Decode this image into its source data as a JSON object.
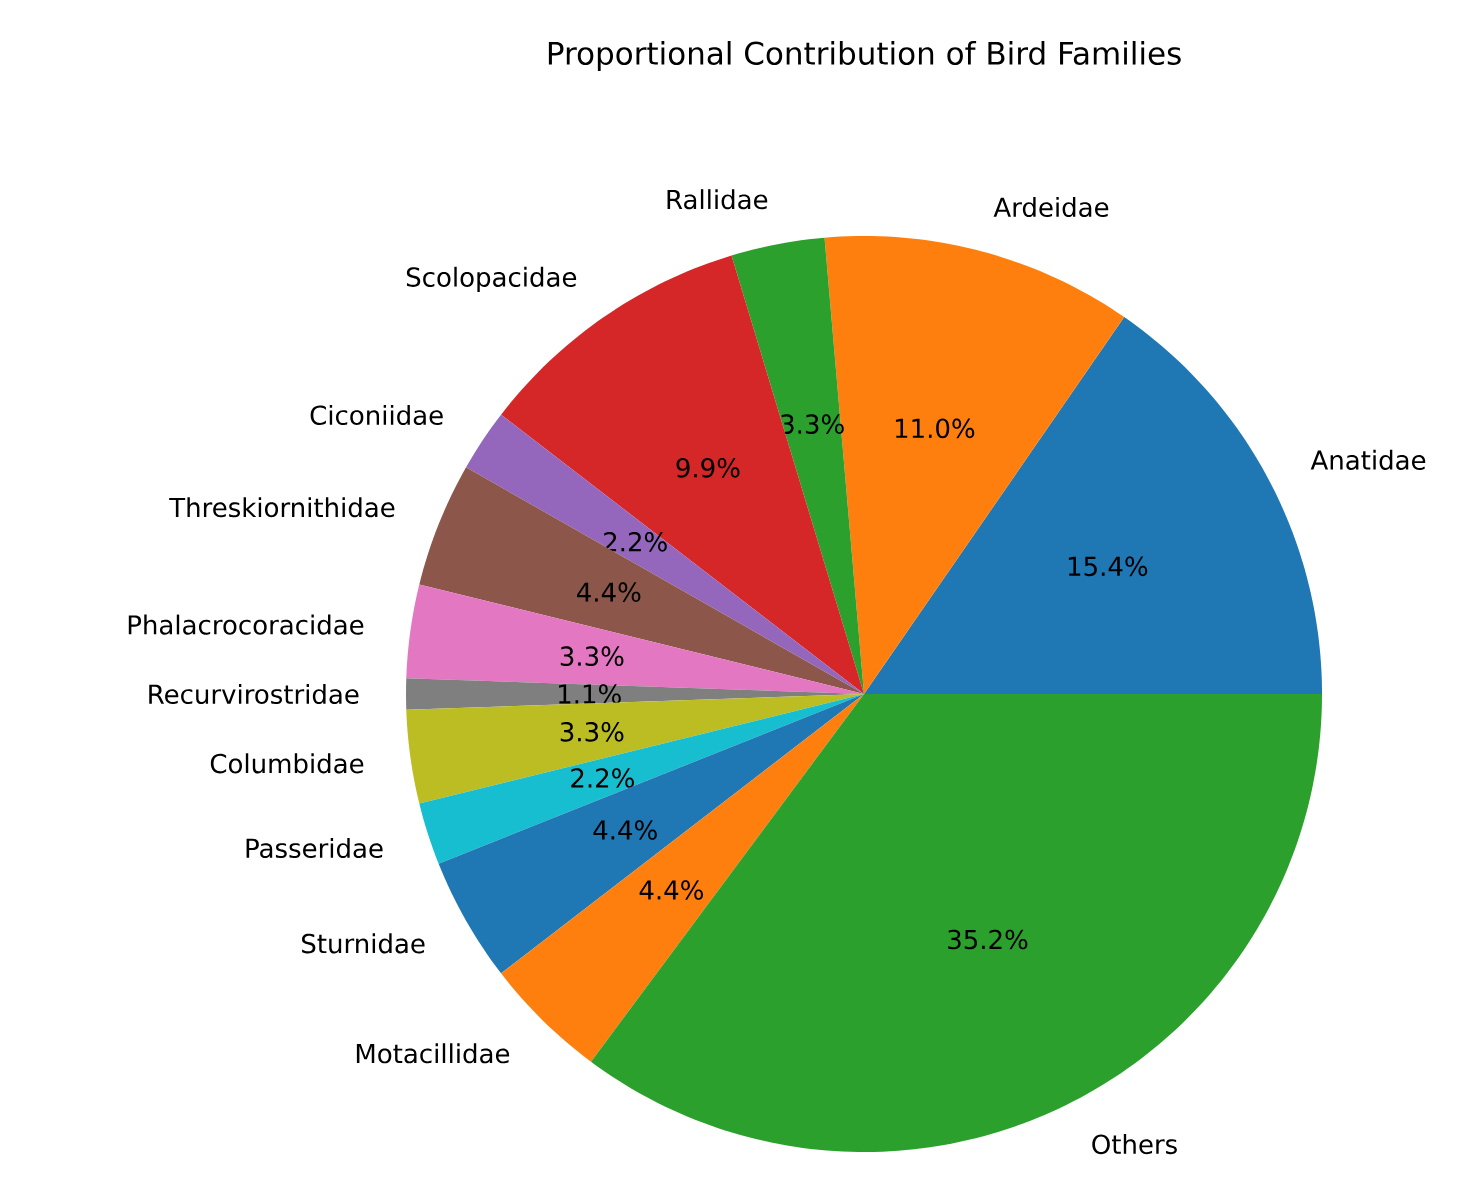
{
  "chart_data": {
    "type": "pie",
    "title": "Proportional Contribution of Bird Families",
    "categories": [
      "Anatidae",
      "Ardeidae",
      "Rallidae",
      "Scolopacidae",
      "Ciconiidae",
      "Threskiornithidae",
      "Phalacrocoracidae",
      "Recurvirostridae",
      "Columbidae",
      "Passeridae",
      "Sturnidae",
      "Motacillidae",
      "Others"
    ],
    "values": [
      15.4,
      11.0,
      3.3,
      9.9,
      2.2,
      4.4,
      3.3,
      1.1,
      3.3,
      2.2,
      4.4,
      4.4,
      35.2
    ],
    "colors": [
      "#1f77b4",
      "#ff7f0e",
      "#2ca02c",
      "#d62728",
      "#9467bd",
      "#8c564b",
      "#e377c2",
      "#7f7f7f",
      "#bcbd22",
      "#17becf",
      "#1f77b4",
      "#ff7f0e",
      "#2ca02c"
    ],
    "value_labels": [
      "15.4%",
      "11.0%",
      "3.3%",
      "9.9%",
      "2.2%",
      "4.4%",
      "3.3%",
      "1.1%",
      "3.3%",
      "2.2%",
      "4.4%",
      "4.4%",
      "35.2%"
    ]
  }
}
